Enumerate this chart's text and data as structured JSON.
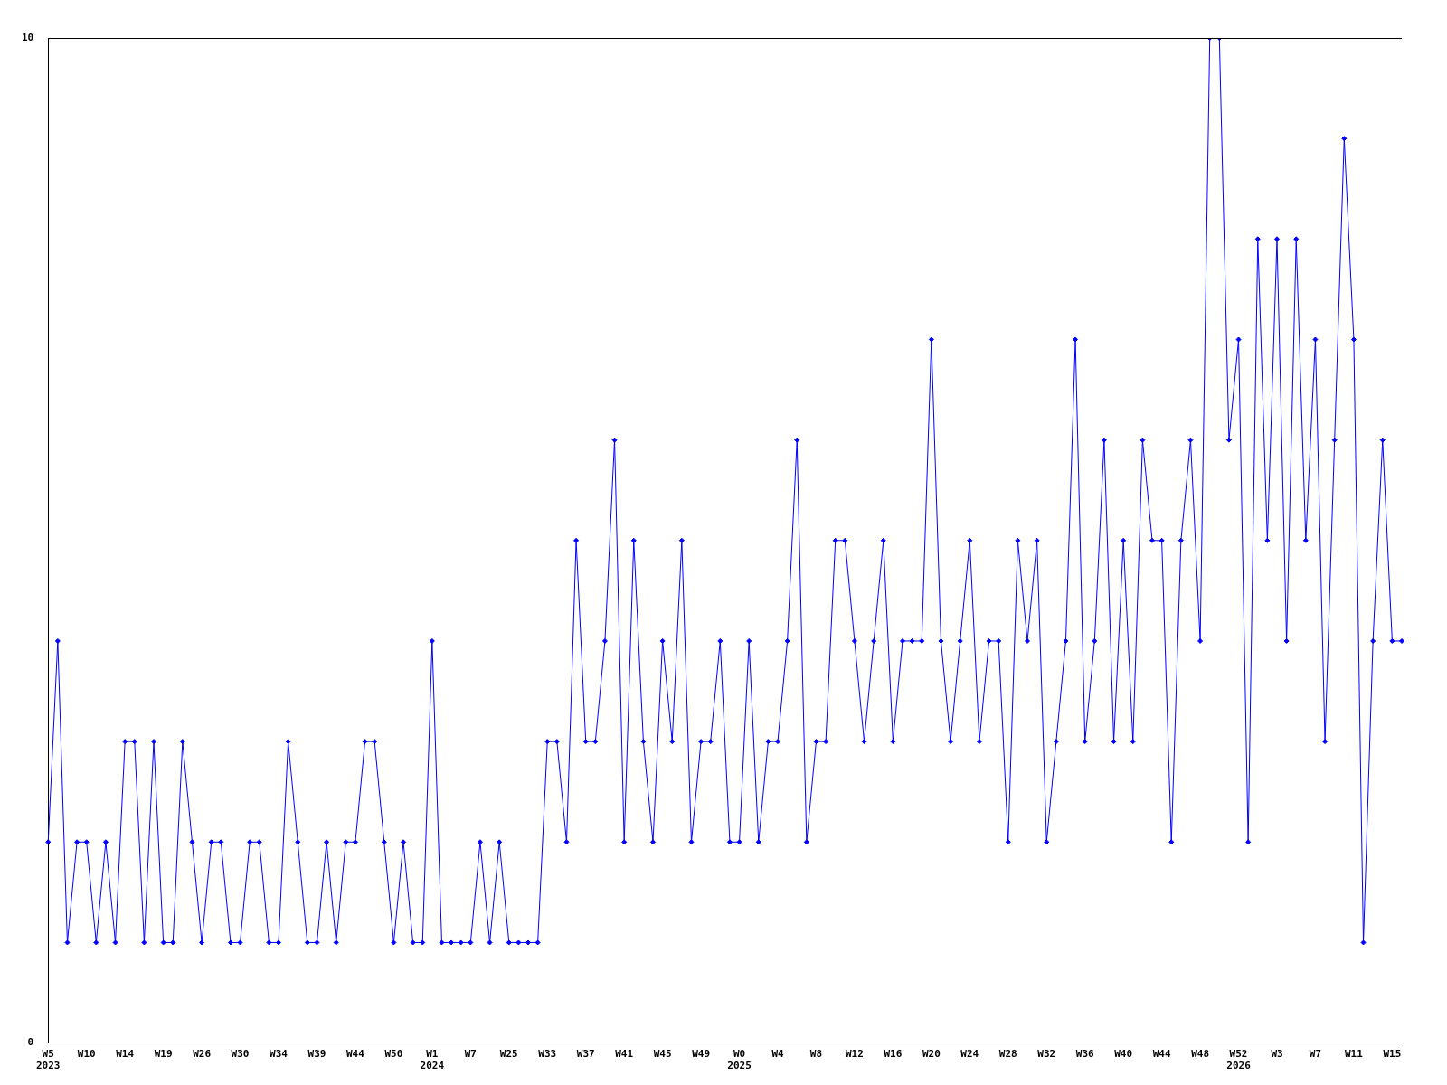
{
  "chart_data": {
    "type": "line",
    "categories": [
      "W5\n2023",
      null,
      null,
      null,
      "W10",
      null,
      null,
      null,
      "W14",
      null,
      null,
      null,
      "W19",
      null,
      null,
      null,
      "W26",
      null,
      null,
      null,
      "W30",
      null,
      null,
      null,
      "W34",
      null,
      null,
      null,
      "W39",
      null,
      null,
      null,
      "W44",
      null,
      null,
      null,
      "W50",
      null,
      null,
      null,
      "W1\n2024",
      null,
      null,
      null,
      "W7",
      null,
      null,
      null,
      "W25",
      null,
      null,
      null,
      "W33",
      null,
      null,
      null,
      "W37",
      null,
      null,
      null,
      "W41",
      null,
      null,
      null,
      "W45",
      null,
      null,
      null,
      "W49",
      null,
      null,
      null,
      "W0\n2025",
      null,
      null,
      null,
      "W4",
      null,
      null,
      null,
      "W8",
      null,
      null,
      null,
      "W12",
      null,
      null,
      null,
      "W16",
      null,
      null,
      null,
      "W20",
      null,
      null,
      null,
      "W24",
      null,
      null,
      null,
      "W28",
      null,
      null,
      null,
      "W32",
      null,
      null,
      null,
      "W36",
      null,
      null,
      null,
      "W40",
      null,
      null,
      null,
      "W44",
      null,
      null,
      null,
      "W48",
      null,
      null,
      null,
      "W52\n2026",
      null,
      null,
      null,
      "W3",
      null,
      null,
      null,
      "W7",
      null,
      null,
      null,
      "W11",
      null,
      null,
      null,
      "W15",
      null
    ],
    "series": [
      {
        "color": "#0000ff",
        "values": [
          2,
          4,
          1,
          2,
          2,
          1,
          2,
          1,
          3,
          3,
          1,
          3,
          1,
          1,
          3,
          2,
          1,
          2,
          2,
          1,
          1,
          2,
          2,
          1,
          1,
          3,
          2,
          1,
          1,
          2,
          1,
          2,
          2,
          3,
          3,
          2,
          1,
          2,
          1,
          1,
          4,
          1,
          1,
          1,
          1,
          2,
          1,
          2,
          1,
          1,
          1,
          1,
          3,
          3,
          2,
          5,
          3,
          3,
          4,
          6,
          2,
          5,
          3,
          2,
          4,
          3,
          5,
          2,
          3,
          3,
          4,
          2,
          2,
          4,
          2,
          3,
          3,
          4,
          6,
          2,
          3,
          3,
          5,
          5,
          4,
          3,
          4,
          5,
          3,
          4,
          4,
          4,
          7,
          4,
          3,
          4,
          5,
          3,
          4,
          4,
          2,
          5,
          4,
          5,
          2,
          3,
          4,
          7,
          3,
          4,
          6,
          3,
          5,
          3,
          6,
          5,
          5,
          2,
          5,
          6,
          4,
          10,
          10,
          6,
          7,
          2,
          8,
          5,
          8,
          4,
          8,
          5,
          7,
          3,
          6,
          9,
          7,
          1,
          4,
          6,
          4,
          4
        ]
      }
    ],
    "ylim": [
      0,
      10
    ],
    "yticks": [
      0,
      10
    ],
    "marker": "diamond",
    "legend": false
  }
}
